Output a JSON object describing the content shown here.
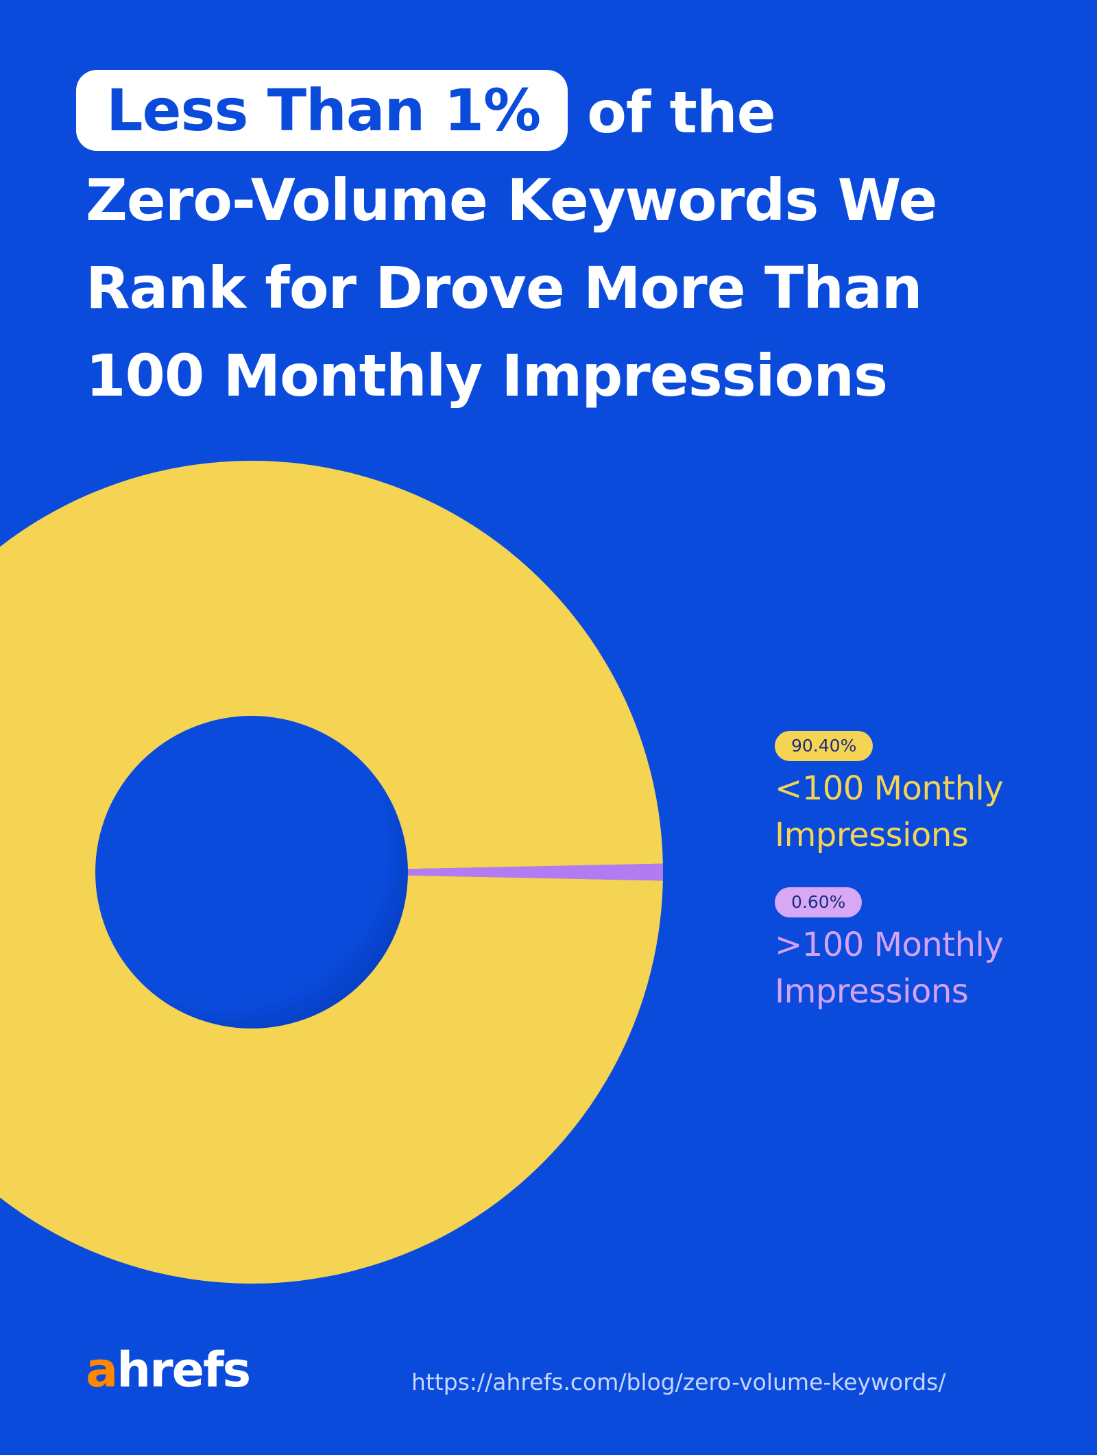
{
  "title": {
    "highlight": "Less Than 1%",
    "line1_rest": "of the",
    "line2": "Zero-Volume Keywords We",
    "line3": "Rank for Drove More Than",
    "line4": "100 Monthly Impressions"
  },
  "chart_data": {
    "type": "pie",
    "variant": "donut",
    "series": [
      {
        "name": "<100 Monthly Impressions",
        "value": 90.4,
        "label": "90.40%",
        "color": "#f5d454"
      },
      {
        "name": ">100 Monthly Impressions",
        "value": 0.6,
        "label": "0.60%",
        "color": "#b27bf2"
      }
    ],
    "legend_placement": "right"
  },
  "legend": [
    {
      "badge": "90.40%",
      "label_line1": "<100 Monthly",
      "label_line2": "Impressions",
      "color": "#f5d454",
      "badge_bg": "#f5d454"
    },
    {
      "badge": "0.60%",
      "label_line1": ">100 Monthly",
      "label_line2": "Impressions",
      "color": "#d6a2f5",
      "badge_bg": "#d8a8f7"
    }
  ],
  "branding": {
    "logo_accent": "a",
    "logo_rest": "hrefs"
  },
  "source": {
    "url": "https://ahrefs.com/blog/zero-volume-keywords/"
  },
  "colors": {
    "background": "#0a4bdc",
    "text": "#ffffff",
    "accent": "#ff8800"
  }
}
